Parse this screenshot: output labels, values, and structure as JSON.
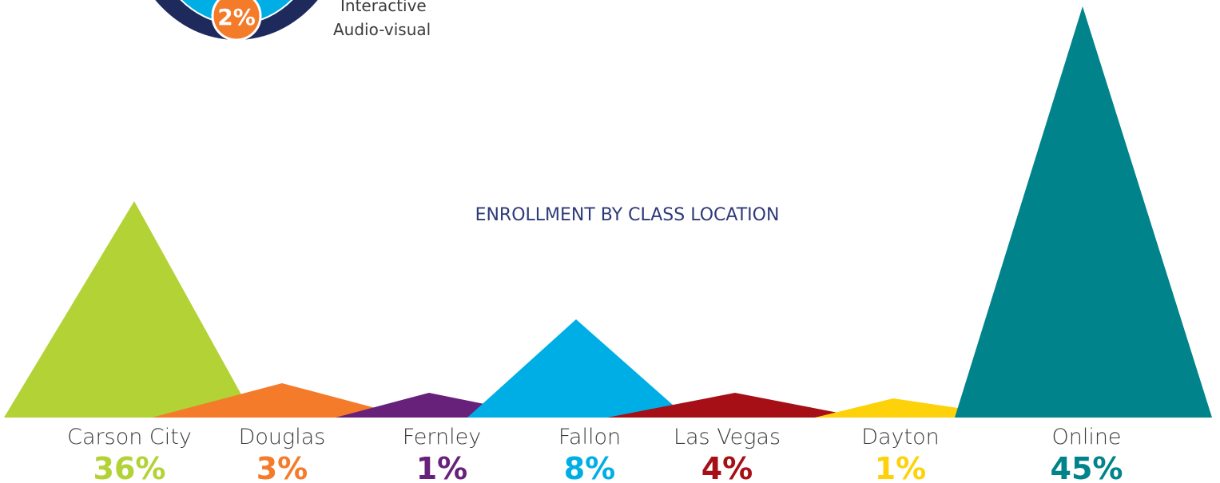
{
  "header": {
    "badge": "2%",
    "labels": [
      "Interactive",
      "Audio-visual"
    ]
  },
  "title": "ENROLLMENT BY CLASS LOCATION",
  "locations": [
    {
      "name": "Carson City",
      "percent": "36%"
    },
    {
      "name": "Douglas",
      "percent": "3%"
    },
    {
      "name": "Fernley",
      "percent": "1%"
    },
    {
      "name": "Fallon",
      "percent": "8%"
    },
    {
      "name": "Las Vegas",
      "percent": "4%"
    },
    {
      "name": "Dayton",
      "percent": "1%"
    },
    {
      "name": "Online",
      "percent": "45%"
    }
  ]
}
